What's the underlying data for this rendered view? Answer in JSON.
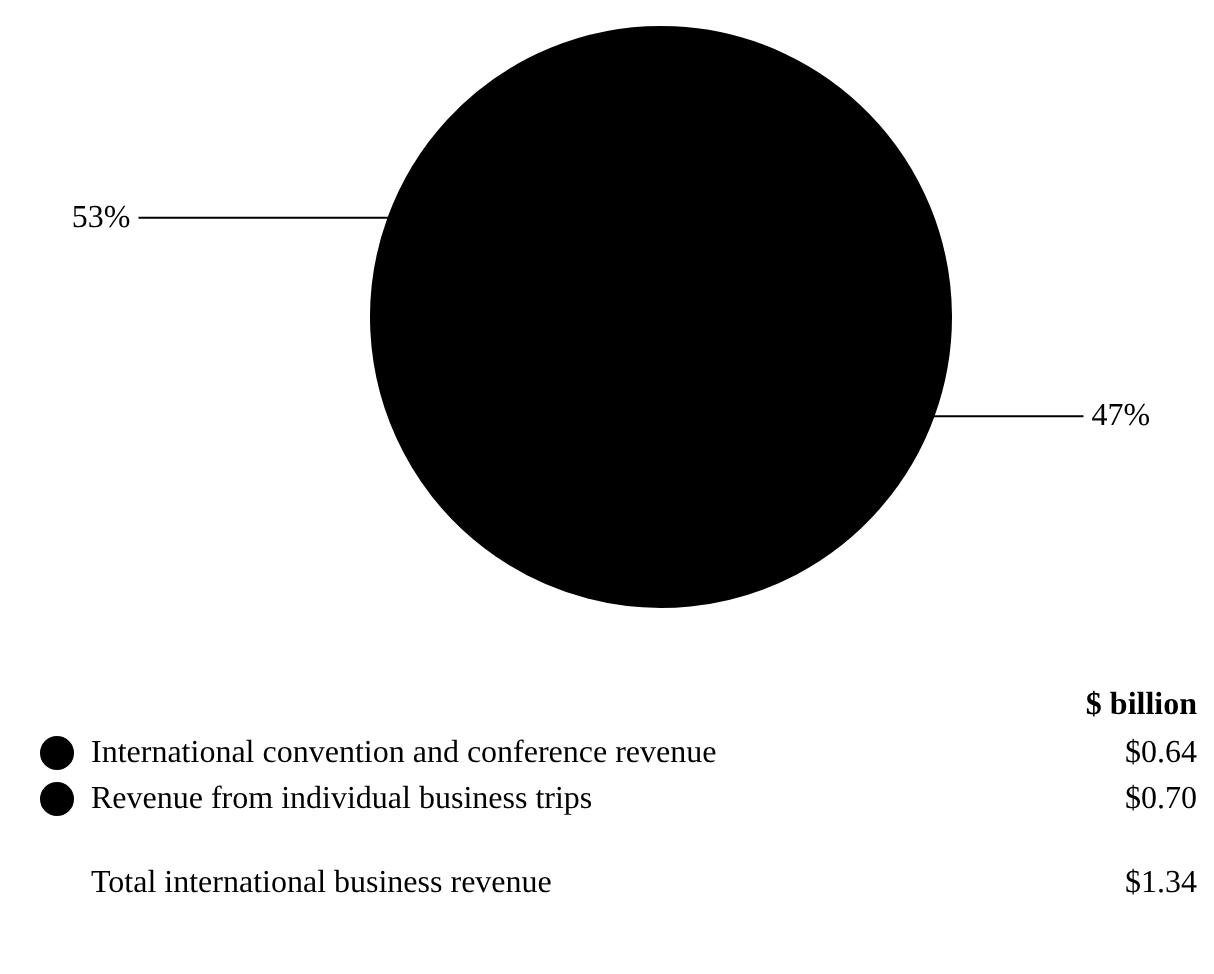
{
  "chart_data": {
    "type": "pie",
    "categories": [
      "International convention and conference revenue",
      "Revenue from individual business trips"
    ],
    "values": [
      47,
      53
    ],
    "colors": [
      "#000000",
      "#000000"
    ],
    "value_labels": [
      "47%",
      "53%"
    ],
    "legend": "bottom",
    "annotations": [
      "$ billion",
      "$0.64",
      "$0.70",
      "Total international business revenue",
      "$1.34"
    ]
  }
}
